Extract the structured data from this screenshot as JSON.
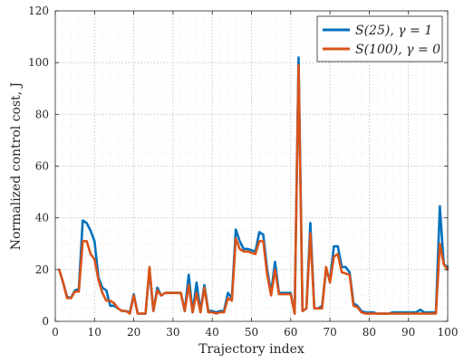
{
  "chart_data": {
    "type": "line",
    "xlabel": "Trajectory index",
    "ylabel": "Normalized control cost, J",
    "xlim": [
      0,
      100
    ],
    "ylim": [
      0,
      120
    ],
    "xticks": [
      0,
      10,
      20,
      30,
      40,
      50,
      60,
      70,
      80,
      90,
      100
    ],
    "yticks": [
      0,
      20,
      40,
      60,
      80,
      100,
      120
    ],
    "grid": "dotted major and minor",
    "legend_position": "top-right",
    "series": [
      {
        "name": "S(25), γ = 1",
        "color": "#0072BD",
        "points": [
          [
            1,
            20
          ],
          [
            2,
            15
          ],
          [
            3,
            9.5
          ],
          [
            4,
            9
          ],
          [
            5,
            12
          ],
          [
            6,
            12.5
          ],
          [
            7,
            39
          ],
          [
            8,
            38
          ],
          [
            9,
            35
          ],
          [
            10,
            31
          ],
          [
            11,
            17
          ],
          [
            12,
            13
          ],
          [
            13,
            12
          ],
          [
            14,
            6
          ],
          [
            15,
            6
          ],
          [
            16,
            5
          ],
          [
            17,
            4
          ],
          [
            18,
            4
          ],
          [
            19,
            3.5
          ],
          [
            20,
            10.5
          ],
          [
            21,
            3
          ],
          [
            22,
            3
          ],
          [
            23,
            3
          ],
          [
            24,
            20
          ],
          [
            25,
            4
          ],
          [
            26,
            13
          ],
          [
            27,
            10
          ],
          [
            28,
            11
          ],
          [
            29,
            11
          ],
          [
            30,
            11
          ],
          [
            31,
            11
          ],
          [
            32,
            11
          ],
          [
            33,
            4
          ],
          [
            34,
            18
          ],
          [
            35,
            3.5
          ],
          [
            36,
            15
          ],
          [
            37,
            4
          ],
          [
            38,
            14
          ],
          [
            39,
            4
          ],
          [
            40,
            4
          ],
          [
            41,
            3.5
          ],
          [
            42,
            4
          ],
          [
            43,
            4
          ],
          [
            44,
            11
          ],
          [
            45,
            9
          ],
          [
            46,
            35.5
          ],
          [
            47,
            31
          ],
          [
            48,
            28
          ],
          [
            49,
            28
          ],
          [
            50,
            27.5
          ],
          [
            51,
            27
          ],
          [
            52,
            34.5
          ],
          [
            53,
            33.5
          ],
          [
            54,
            20
          ],
          [
            55,
            11
          ],
          [
            56,
            23
          ],
          [
            57,
            11
          ],
          [
            58,
            11
          ],
          [
            59,
            11
          ],
          [
            60,
            11
          ],
          [
            61,
            3
          ],
          [
            62,
            102
          ],
          [
            63,
            4
          ],
          [
            64,
            5
          ],
          [
            65,
            38
          ],
          [
            66,
            5
          ],
          [
            67,
            5
          ],
          [
            68,
            6
          ],
          [
            69,
            20
          ],
          [
            70,
            16
          ],
          [
            71,
            29
          ],
          [
            72,
            29
          ],
          [
            73,
            21
          ],
          [
            74,
            21
          ],
          [
            75,
            19
          ],
          [
            76,
            7
          ],
          [
            77,
            6
          ],
          [
            78,
            4
          ],
          [
            79,
            3.5
          ],
          [
            80,
            3.5
          ],
          [
            81,
            3.5
          ],
          [
            82,
            3
          ],
          [
            83,
            3
          ],
          [
            84,
            3
          ],
          [
            85,
            3
          ],
          [
            86,
            3.5
          ],
          [
            87,
            3.5
          ],
          [
            88,
            3.5
          ],
          [
            89,
            3.5
          ],
          [
            90,
            3.5
          ],
          [
            91,
            3.5
          ],
          [
            92,
            3.5
          ],
          [
            93,
            4.5
          ],
          [
            94,
            3.5
          ],
          [
            95,
            3.5
          ],
          [
            96,
            3.5
          ],
          [
            97,
            3.5
          ],
          [
            98,
            44.5
          ],
          [
            99,
            22
          ],
          [
            100,
            21
          ]
        ]
      },
      {
        "name": "S(100), γ = 0",
        "color": "#D95319",
        "points": [
          [
            1,
            20
          ],
          [
            2,
            15
          ],
          [
            3,
            9
          ],
          [
            4,
            9
          ],
          [
            5,
            11.5
          ],
          [
            6,
            11.5
          ],
          [
            7,
            31
          ],
          [
            8,
            31
          ],
          [
            9,
            26
          ],
          [
            10,
            24
          ],
          [
            11,
            16
          ],
          [
            12,
            11
          ],
          [
            13,
            8
          ],
          [
            14,
            8
          ],
          [
            15,
            7
          ],
          [
            16,
            5
          ],
          [
            17,
            4
          ],
          [
            18,
            4
          ],
          [
            19,
            3
          ],
          [
            20,
            10
          ],
          [
            21,
            3
          ],
          [
            22,
            3
          ],
          [
            23,
            3
          ],
          [
            24,
            21
          ],
          [
            25,
            4
          ],
          [
            26,
            12
          ],
          [
            27,
            10
          ],
          [
            28,
            11
          ],
          [
            29,
            11
          ],
          [
            30,
            11
          ],
          [
            31,
            11
          ],
          [
            32,
            11
          ],
          [
            33,
            4
          ],
          [
            34,
            14
          ],
          [
            35,
            3.5
          ],
          [
            36,
            11
          ],
          [
            37,
            3.5
          ],
          [
            38,
            13
          ],
          [
            39,
            3.5
          ],
          [
            40,
            3.5
          ],
          [
            41,
            3
          ],
          [
            42,
            3.5
          ],
          [
            43,
            3.5
          ],
          [
            44,
            9
          ],
          [
            45,
            8
          ],
          [
            46,
            32
          ],
          [
            47,
            28
          ],
          [
            48,
            27
          ],
          [
            49,
            27
          ],
          [
            50,
            26.5
          ],
          [
            51,
            26
          ],
          [
            52,
            31
          ],
          [
            53,
            31
          ],
          [
            54,
            18
          ],
          [
            55,
            10
          ],
          [
            56,
            20
          ],
          [
            57,
            10.5
          ],
          [
            58,
            10.5
          ],
          [
            59,
            10.5
          ],
          [
            60,
            10.5
          ],
          [
            61,
            3
          ],
          [
            62,
            99
          ],
          [
            63,
            4
          ],
          [
            64,
            5
          ],
          [
            65,
            34
          ],
          [
            66,
            5
          ],
          [
            67,
            5
          ],
          [
            68,
            5
          ],
          [
            69,
            21
          ],
          [
            70,
            15
          ],
          [
            71,
            25
          ],
          [
            72,
            26
          ],
          [
            73,
            19
          ],
          [
            74,
            18.5
          ],
          [
            75,
            18
          ],
          [
            76,
            6
          ],
          [
            77,
            5.5
          ],
          [
            78,
            3.5
          ],
          [
            79,
            3
          ],
          [
            80,
            3
          ],
          [
            81,
            3
          ],
          [
            82,
            3
          ],
          [
            83,
            3
          ],
          [
            84,
            3
          ],
          [
            85,
            3
          ],
          [
            86,
            3
          ],
          [
            87,
            3
          ],
          [
            88,
            3
          ],
          [
            89,
            3
          ],
          [
            90,
            3
          ],
          [
            91,
            3
          ],
          [
            92,
            3
          ],
          [
            93,
            3
          ],
          [
            94,
            3
          ],
          [
            95,
            3
          ],
          [
            96,
            3
          ],
          [
            97,
            3
          ],
          [
            98,
            30
          ],
          [
            99,
            22
          ],
          [
            100,
            20
          ]
        ]
      }
    ]
  }
}
